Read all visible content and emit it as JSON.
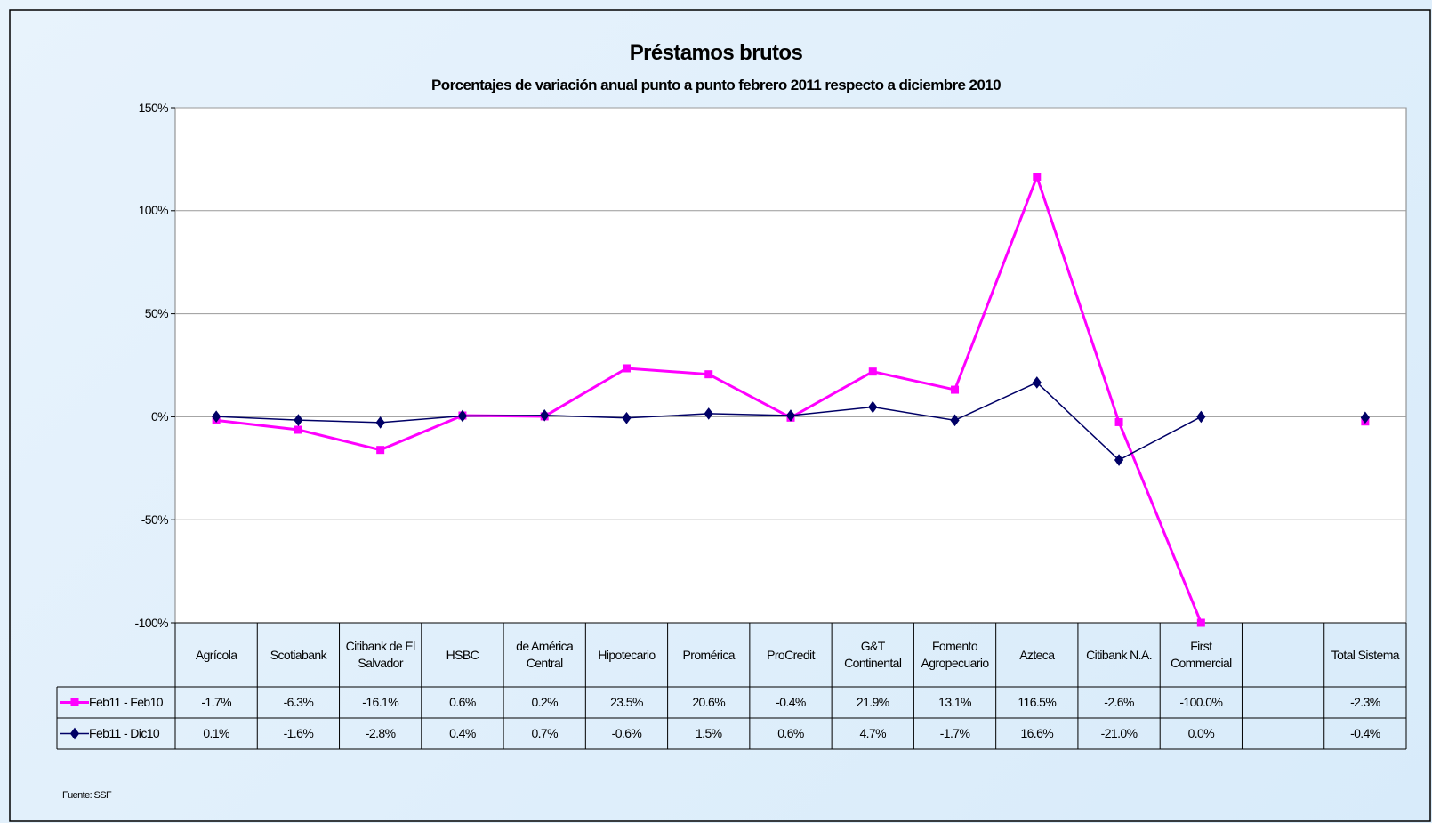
{
  "chart_data": {
    "type": "line",
    "title": "Préstamos brutos",
    "subtitle": "Porcentajes de variación anual punto a punto febrero 2011 respecto a diciembre 2010",
    "source": "Fuente: SSF",
    "categories": [
      "Agrícola",
      "Scotiabank",
      "Citibank de El Salvador",
      "HSBC",
      "de América Central",
      "Hipotecario",
      "Promérica",
      "ProCredit",
      "G&T Continental",
      "Fomento Agropecuario",
      "Azteca",
      "Citibank N.A.",
      "First Commercial",
      null,
      "Total Sistema"
    ],
    "ylim": [
      -100,
      150
    ],
    "yticks": [
      {
        "value": -100,
        "label": "-100%"
      },
      {
        "value": -50,
        "label": "-50%"
      },
      {
        "value": 0,
        "label": "0%"
      },
      {
        "value": 50,
        "label": "50%"
      },
      {
        "value": 100,
        "label": "100%"
      },
      {
        "value": 150,
        "label": "150%"
      }
    ],
    "grid": true,
    "series": [
      {
        "name": "Feb11 - Feb10",
        "color": "#ff00ff",
        "marker": "square",
        "values": [
          -1.7,
          -6.3,
          -16.1,
          0.6,
          0.2,
          23.5,
          20.6,
          -0.4,
          21.9,
          13.1,
          116.5,
          -2.6,
          -100.0,
          null,
          -2.3
        ],
        "value_labels": [
          "-1.7%",
          "-6.3%",
          "-16.1%",
          "0.6%",
          "0.2%",
          "23.5%",
          "20.6%",
          "-0.4%",
          "21.9%",
          "13.1%",
          "116.5%",
          "-2.6%",
          "-100.0%",
          null,
          "-2.3%"
        ]
      },
      {
        "name": "Feb11 - Dic10",
        "color": "#000066",
        "marker": "diamond",
        "values": [
          0.1,
          -1.6,
          -2.8,
          0.4,
          0.7,
          -0.6,
          1.5,
          0.6,
          4.7,
          -1.7,
          16.6,
          -21.0,
          0.0,
          null,
          -0.4
        ],
        "value_labels": [
          "0.1%",
          "-1.6%",
          "-2.8%",
          "0.4%",
          "0.7%",
          "-0.6%",
          "1.5%",
          "0.6%",
          "4.7%",
          "-1.7%",
          "16.6%",
          "-21.0%",
          "0.0%",
          null,
          "-0.4%"
        ]
      }
    ]
  }
}
